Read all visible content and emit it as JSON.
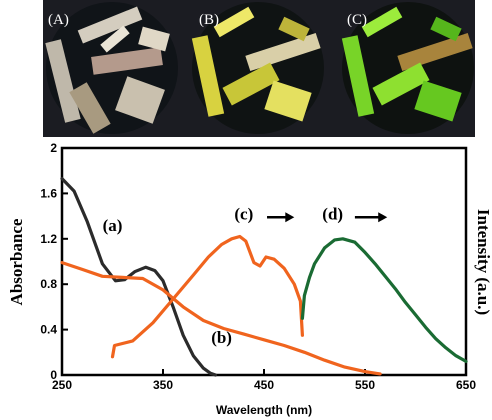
{
  "photo_panels": [
    {
      "label": "(A)",
      "tint": "#d8d2c8"
    },
    {
      "label": "(B)",
      "tint": "#e6e04a"
    },
    {
      "label": "(C)",
      "tint": "#7ee02a"
    }
  ],
  "chart_data": {
    "type": "line",
    "title": "",
    "xlabel": "Wavelength (nm)",
    "ylabel_left": "Absorbance",
    "ylabel_right": "Intensity (a.u.)",
    "xlim": [
      250,
      650
    ],
    "ylim": [
      0,
      2
    ],
    "x_ticks": [
      250,
      350,
      450,
      550,
      650
    ],
    "y_ticks": [
      0,
      0.4,
      0.8,
      1.2,
      1.6,
      2
    ],
    "y_tick_labels": [
      "0",
      "0.4",
      "0.8",
      "1.2",
      "1.6",
      "2"
    ],
    "series": [
      {
        "name": "(a)",
        "color": "#2b2b2b",
        "x": [
          250,
          262,
          275,
          290,
          303,
          312,
          322,
          333,
          342,
          350,
          360,
          370,
          380,
          390,
          397,
          402
        ],
        "y": [
          1.73,
          1.62,
          1.35,
          0.98,
          0.83,
          0.84,
          0.91,
          0.95,
          0.92,
          0.83,
          0.6,
          0.35,
          0.17,
          0.06,
          0.015,
          0.0
        ]
      },
      {
        "name": "(b)",
        "color": "#f0641e",
        "x": [
          250,
          270,
          290,
          310,
          330,
          350,
          370,
          390,
          410,
          430,
          450,
          470,
          490,
          510,
          530,
          550,
          565
        ],
        "y": [
          0.99,
          0.93,
          0.87,
          0.86,
          0.85,
          0.75,
          0.6,
          0.48,
          0.41,
          0.36,
          0.31,
          0.26,
          0.2,
          0.13,
          0.07,
          0.03,
          0.01
        ]
      },
      {
        "name": "(c)",
        "color": "#f0641e",
        "x": [
          300,
          302,
          320,
          340,
          360,
          380,
          395,
          408,
          418,
          426,
          432,
          440,
          446,
          452,
          460,
          470,
          480,
          486,
          488
        ],
        "y": [
          0.16,
          0.26,
          0.3,
          0.46,
          0.67,
          0.88,
          1.04,
          1.15,
          1.2,
          1.22,
          1.18,
          0.99,
          0.96,
          1.04,
          1.02,
          0.94,
          0.8,
          0.65,
          0.35
        ]
      },
      {
        "name": "(d)",
        "color": "#1a6b33",
        "x": [
          488,
          490,
          495,
          500,
          510,
          520,
          528,
          540,
          550,
          560,
          570,
          580,
          590,
          600,
          610,
          620,
          630,
          640,
          650
        ],
        "y": [
          0.5,
          0.7,
          0.86,
          0.98,
          1.12,
          1.19,
          1.2,
          1.17,
          1.08,
          0.98,
          0.87,
          0.76,
          0.64,
          0.53,
          0.42,
          0.32,
          0.24,
          0.17,
          0.12
        ]
      }
    ],
    "annotations": [
      {
        "text": "(a)",
        "x": 300,
        "y": 1.27
      },
      {
        "text": "(b)",
        "x": 408,
        "y": 0.28
      },
      {
        "text": "(c)",
        "x": 430,
        "y": 1.37
      },
      {
        "text": "(d)",
        "x": 518,
        "y": 1.37
      }
    ],
    "arrows": [
      {
        "x_start": 453,
        "x_end": 480,
        "y": 1.39
      },
      {
        "x_start": 540,
        "x_end": 572,
        "y": 1.39
      }
    ]
  }
}
